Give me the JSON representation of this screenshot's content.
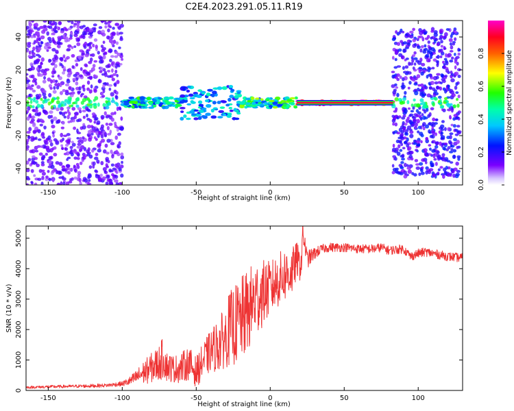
{
  "title": "C2E4.2023.291.05.11.R19",
  "colors": {
    "snr_line": "#ee3333",
    "frame": "#000000",
    "background": "#ffffff"
  },
  "chart_data": [
    {
      "type": "heatmap",
      "ylabel": "Frequency (Hz)",
      "xlabel": "Height of straight line (km)",
      "xlim": [
        -165,
        130
      ],
      "ylim": [
        -50,
        50
      ],
      "x_ticks": [
        -150,
        -100,
        -50,
        0,
        50,
        100
      ],
      "x_tick_labels": [
        "-150",
        "-100",
        "-50",
        "0",
        "50",
        "100"
      ],
      "y_ticks": [
        -40,
        -20,
        0,
        20,
        40
      ],
      "y_tick_labels": [
        "-40",
        "-20",
        "0",
        "20",
        "40"
      ],
      "grid": false,
      "colorbar": {
        "label": "Normalized spectral amplitude",
        "range": [
          0,
          1
        ],
        "ticks": [
          0.0,
          0.2,
          0.4,
          0.6,
          0.8
        ],
        "tick_labels": [
          "0.0",
          "0.2",
          "0.4",
          "0.6",
          "0.8"
        ],
        "colormap": "gist_rainbow reversed (white, purple, blue, cyan, green, yellow, orange, red, magenta)"
      },
      "regions": [
        {
          "x_range": [
            -165,
            -100
          ],
          "description_level": "noise",
          "freq_spread_hz": [
            -50,
            50
          ],
          "amplitude": 0.15
        },
        {
          "x_range": [
            -100,
            -60
          ],
          "description_level": "weak carrier",
          "freq_spread_hz": [
            -3,
            3
          ],
          "amplitude": 0.45
        },
        {
          "x_range": [
            -60,
            -20
          ],
          "description_level": "broadened carrier",
          "freq_spread_hz": [
            -10,
            10
          ],
          "amplitude": 0.35
        },
        {
          "x_range": [
            -20,
            18
          ],
          "description_level": "carrier",
          "freq_spread_hz": [
            -3,
            3
          ],
          "amplitude": 0.5
        },
        {
          "x_range": [
            18,
            83
          ],
          "description_level": "clean carrier",
          "freq_spread_hz": [
            -1,
            1
          ],
          "amplitude": 1.0
        },
        {
          "x_range": [
            83,
            128
          ],
          "description_level": "carrier with noise",
          "freq_spread_hz": [
            -45,
            45
          ],
          "amplitude": 0.2
        }
      ]
    },
    {
      "type": "line",
      "ylabel": "SNR (10 * v/v)",
      "xlabel": "Height of straight line (km)",
      "xlim": [
        -165,
        130
      ],
      "ylim": [
        0,
        5400
      ],
      "x_ticks": [
        -150,
        -100,
        -50,
        0,
        50,
        100
      ],
      "x_tick_labels": [
        "-150",
        "-100",
        "-50",
        "0",
        "50",
        "100"
      ],
      "y_ticks": [
        0,
        1000,
        2000,
        3000,
        4000,
        5000
      ],
      "y_tick_labels": [
        "0",
        "1000",
        "2000",
        "3000",
        "4000",
        "5000"
      ],
      "grid": false,
      "series": [
        {
          "x": [
            -165,
            -150,
            -140,
            -130,
            -120,
            -110,
            -100,
            -95,
            -90,
            -85,
            -80,
            -75,
            -72,
            -70,
            -65,
            -60,
            -55,
            -50,
            -45,
            -40,
            -35,
            -30,
            -28,
            -25,
            -20,
            -15,
            -10,
            -5,
            0,
            5,
            10,
            15,
            18,
            20,
            21,
            22,
            25,
            30,
            35,
            40,
            50,
            60,
            70,
            75,
            80,
            90,
            95,
            100,
            105,
            110,
            120,
            130
          ],
          "values": [
            100,
            120,
            130,
            140,
            150,
            170,
            220,
            300,
            450,
            600,
            750,
            900,
            1100,
            800,
            700,
            750,
            900,
            600,
            1000,
            1300,
            1500,
            1750,
            2000,
            2100,
            2300,
            2600,
            3000,
            3200,
            3350,
            3600,
            3800,
            3900,
            4300,
            4100,
            4200,
            5200,
            4300,
            4500,
            4650,
            4700,
            4700,
            4650,
            4650,
            4700,
            4600,
            4650,
            4400,
            4500,
            4550,
            4500,
            4400,
            4350
          ],
          "noise_amplitude": [
            40,
            50,
            50,
            50,
            60,
            60,
            80,
            150,
            250,
            400,
            500,
            600,
            700,
            500,
            450,
            500,
            550,
            500,
            600,
            700,
            900,
            1000,
            1200,
            1300,
            1400,
            1400,
            1300,
            1100,
            900,
            900,
            900,
            800,
            600,
            500,
            500,
            400,
            300,
            200,
            150,
            150,
            150,
            150,
            150,
            150,
            150,
            150,
            150,
            150,
            150,
            150,
            150,
            150
          ]
        }
      ]
    }
  ]
}
